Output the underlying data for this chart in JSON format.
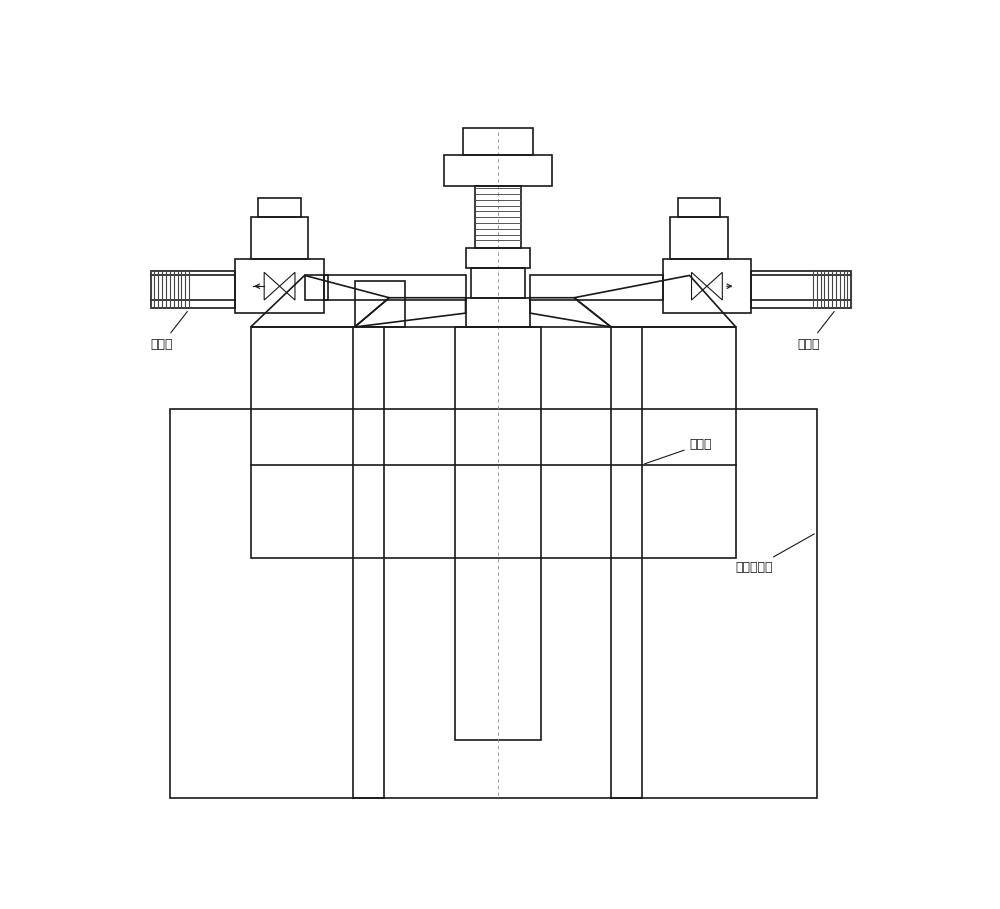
{
  "bg_color": "#ffffff",
  "line_color": "#1a1a1a",
  "lw": 1.2,
  "label_outlet": "出气端",
  "label_inlet": "进气端",
  "label_liquid": "液态源",
  "label_cooler": "半导体冷酷",
  "fig_width": 10.0,
  "fig_height": 9.09
}
